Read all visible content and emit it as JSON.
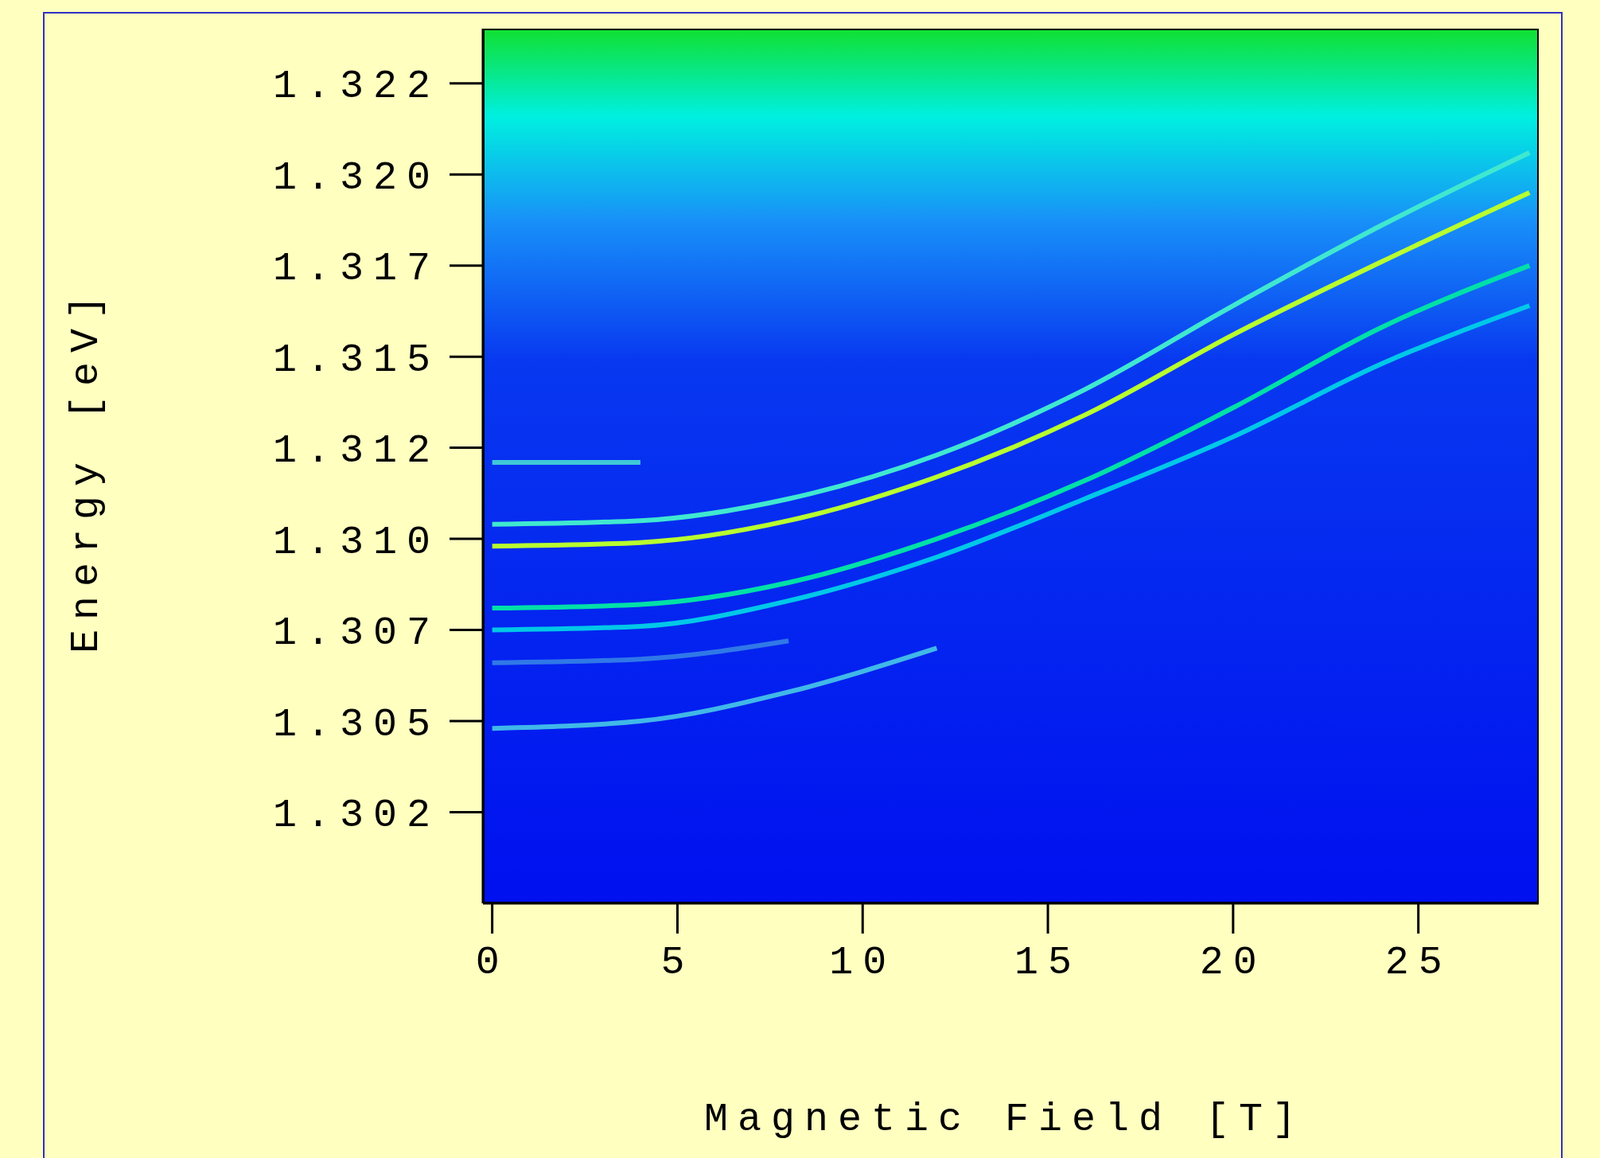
{
  "chart_data": {
    "type": "line",
    "xlabel": "Magnetic Field [T]",
    "ylabel": "Energy [eV]",
    "x": [
      0,
      4,
      8,
      12,
      16,
      20,
      24,
      28
    ],
    "series": [
      {
        "color": "#3078e8",
        "values": [
          1.3066,
          1.3067,
          1.3072,
          null,
          null,
          null,
          null,
          null
        ]
      },
      {
        "color": "#40b8e8",
        "values": [
          1.3048,
          1.305,
          1.3058,
          1.307,
          null,
          null,
          null,
          null
        ]
      },
      {
        "color": "#40c8d8",
        "values": [
          1.3121,
          1.3121,
          null,
          null,
          null,
          null,
          null,
          null
        ]
      },
      {
        "color": "#00c8e8",
        "values": [
          1.3075,
          1.3076,
          1.3083,
          1.3095,
          1.3111,
          1.3128,
          1.3148,
          1.3164
        ]
      },
      {
        "color": "#00e0a8",
        "values": [
          1.3081,
          1.3082,
          1.3088,
          1.31,
          1.3116,
          1.3136,
          1.3158,
          1.3175
        ]
      },
      {
        "color": "#40e8d0",
        "values": [
          1.3104,
          1.3105,
          1.3111,
          1.3123,
          1.3141,
          1.3164,
          1.3186,
          1.3206
        ]
      },
      {
        "color": "#b8ff30",
        "values": [
          1.3098,
          1.3099,
          1.3105,
          1.3117,
          1.3134,
          1.3156,
          1.3176,
          1.3195
        ]
      }
    ],
    "xlim": [
      -0.25,
      28.25
    ],
    "ylim": [
      1.3,
      1.324
    ],
    "xticks": [
      0,
      5,
      10,
      15,
      20,
      25
    ],
    "yticks": [
      {
        "value": 1.3025,
        "label": "1.302"
      },
      {
        "value": 1.305,
        "label": "1.305"
      },
      {
        "value": 1.3075,
        "label": "1.307"
      },
      {
        "value": 1.31,
        "label": "1.310"
      },
      {
        "value": 1.3125,
        "label": "1.312"
      },
      {
        "value": 1.315,
        "label": "1.315"
      },
      {
        "value": 1.3175,
        "label": "1.317"
      },
      {
        "value": 1.32,
        "label": "1.320"
      },
      {
        "value": 1.3225,
        "label": "1.322"
      }
    ],
    "grid": false
  }
}
